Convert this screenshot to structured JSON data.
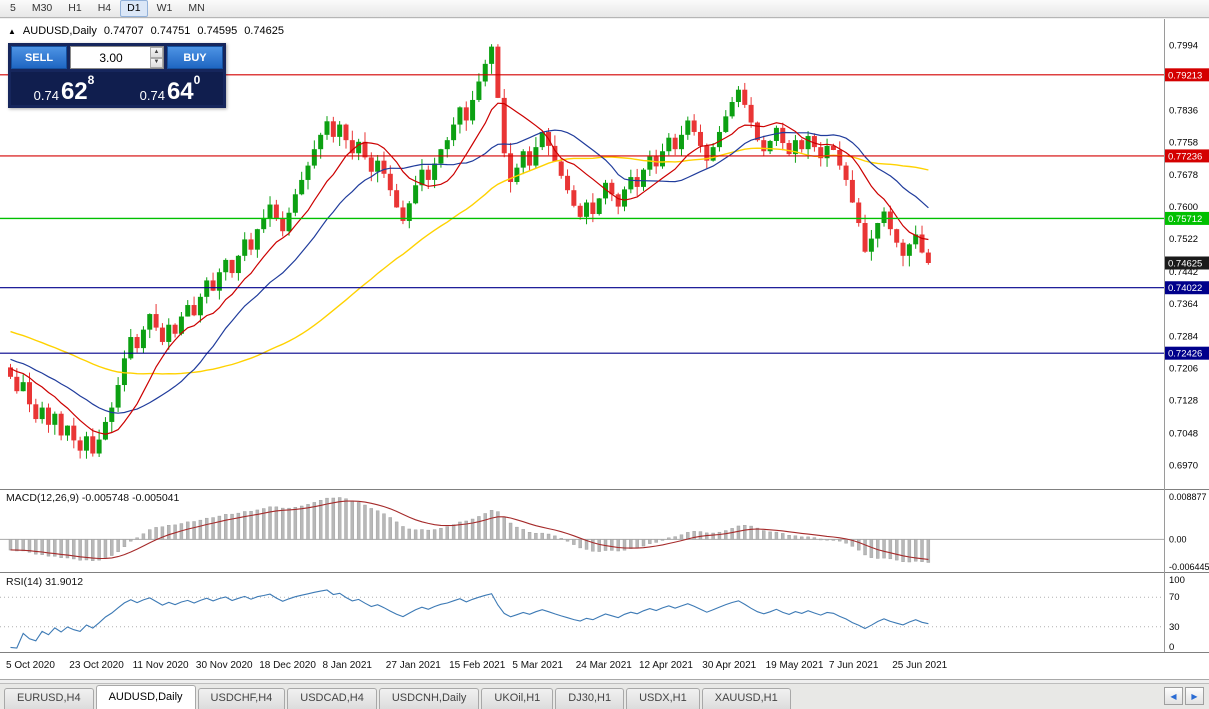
{
  "ui_colors": {
    "accent": "#2b6cd4",
    "panel_navy": "#16265c",
    "panel_navy_dark": "#101e4e",
    "button_blue": "#2f7fd8"
  },
  "toolbar": {
    "timeframes": [
      {
        "label": "5",
        "active": false
      },
      {
        "label": "M30",
        "active": false
      },
      {
        "label": "H1",
        "active": false
      },
      {
        "label": "H4",
        "active": false
      },
      {
        "label": "D1",
        "active": true
      },
      {
        "label": "W1",
        "active": false
      },
      {
        "label": "MN",
        "active": false
      }
    ]
  },
  "symbol_header": {
    "collapse_icon": "▲",
    "symbol": "AUDUSD,Daily",
    "open": "0.74707",
    "high": "0.74751",
    "low": "0.74595",
    "close": "0.74625"
  },
  "trade_panel": {
    "sell_label": "SELL",
    "buy_label": "BUY",
    "lot_value": "3.00",
    "spin_up_icon": "▲",
    "spin_down_icon": "▼",
    "sell_price": {
      "small": "0.74",
      "big": "62",
      "sup": "8"
    },
    "buy_price": {
      "small": "0.74",
      "big": "64",
      "sup": "0"
    }
  },
  "chart_data": {
    "type": "candlestick",
    "title": "AUDUSD,Daily",
    "timeframe": "Daily",
    "ylim": [
      0.693,
      0.804
    ],
    "first_open": 0.7208,
    "closes": [
      0.7185,
      0.715,
      0.7172,
      0.7118,
      0.7082,
      0.711,
      0.7068,
      0.7095,
      0.7042,
      0.7066,
      0.703,
      0.7005,
      0.704,
      0.6998,
      0.7032,
      0.7075,
      0.711,
      0.7165,
      0.723,
      0.7282,
      0.7255,
      0.73,
      0.7338,
      0.7305,
      0.727,
      0.7312,
      0.729,
      0.7332,
      0.736,
      0.7335,
      0.738,
      0.742,
      0.7395,
      0.744,
      0.747,
      0.7438,
      0.748,
      0.752,
      0.7495,
      0.7545,
      0.7572,
      0.7605,
      0.757,
      0.754,
      0.7585,
      0.763,
      0.7665,
      0.77,
      0.774,
      0.7775,
      0.7808,
      0.777,
      0.78,
      0.7762,
      0.773,
      0.7758,
      0.772,
      0.7685,
      0.7712,
      0.768,
      0.764,
      0.7598,
      0.7565,
      0.7608,
      0.7652,
      0.769,
      0.7665,
      0.7705,
      0.774,
      0.7762,
      0.78,
      0.7842,
      0.781,
      0.786,
      0.7905,
      0.7948,
      0.799,
      0.7865,
      0.773,
      0.766,
      0.7695,
      0.7735,
      0.77,
      0.7745,
      0.7782,
      0.7748,
      0.771,
      0.7675,
      0.764,
      0.7602,
      0.7575,
      0.761,
      0.7582,
      0.762,
      0.7658,
      0.763,
      0.76,
      0.7642,
      0.7672,
      0.7648,
      0.769,
      0.7722,
      0.7698,
      0.7735,
      0.7768,
      0.774,
      0.7775,
      0.781,
      0.7782,
      0.7748,
      0.7712,
      0.7745,
      0.7782,
      0.782,
      0.7855,
      0.7885,
      0.7848,
      0.7805,
      0.7762,
      0.7735,
      0.776,
      0.7792,
      0.7755,
      0.7728,
      0.7762,
      0.774,
      0.7772,
      0.7745,
      0.7718,
      0.7748,
      0.7738,
      0.77,
      0.7665,
      0.761,
      0.756,
      0.749,
      0.7522,
      0.756,
      0.7588,
      0.7545,
      0.7512,
      0.748,
      0.7508,
      0.7532,
      0.7488,
      0.74625
    ],
    "x_ticks": [
      {
        "label": "5 Oct 2020",
        "i": 0
      },
      {
        "label": "23 Oct 2020",
        "i": 10
      },
      {
        "label": "11 Nov 2020",
        "i": 20
      },
      {
        "label": "30 Nov 2020",
        "i": 30
      },
      {
        "label": "18 Dec 2020",
        "i": 40
      },
      {
        "label": "8 Jan 2021",
        "i": 50
      },
      {
        "label": "27 Jan 2021",
        "i": 60
      },
      {
        "label": "15 Feb 2021",
        "i": 70
      },
      {
        "label": "5 Mar 2021",
        "i": 80
      },
      {
        "label": "24 Mar 2021",
        "i": 90
      },
      {
        "label": "12 Apr 2021",
        "i": 100
      },
      {
        "label": "30 Apr 2021",
        "i": 110
      },
      {
        "label": "19 May 2021",
        "i": 120
      },
      {
        "label": "7 Jun 2021",
        "i": 130
      },
      {
        "label": "25 Jun 2021",
        "i": 140
      }
    ],
    "y_labels": [
      "0.7994",
      "0.7916",
      "0.7836",
      "0.7758",
      "0.7678",
      "0.7600",
      "0.7522",
      "0.7442",
      "0.7364",
      "0.7284",
      "0.7206",
      "0.7128",
      "0.7048",
      "0.6970"
    ],
    "levels": [
      {
        "price": 0.79213,
        "label": "0.79213",
        "color": "#d40000"
      },
      {
        "price": 0.77236,
        "label": "0.77236",
        "color": "#d40000"
      },
      {
        "price": 0.75712,
        "label": "0.75712",
        "color": "#00c000"
      },
      {
        "price": 0.74022,
        "label": "0.74022",
        "color": "#00008b"
      },
      {
        "price": 0.72426,
        "label": "0.72426",
        "color": "#00008b"
      }
    ],
    "current": {
      "price": 0.74625,
      "label": "0.74625",
      "color": "#1a1a1a"
    },
    "moving_averages": [
      {
        "type": "SMA",
        "period": 10,
        "color": "#cc0000"
      },
      {
        "type": "SMA",
        "period": 20,
        "color": "#203c9c"
      },
      {
        "type": "SMA",
        "period": 50,
        "color": "#ffd200"
      }
    ],
    "colors": {
      "up": "#0ca012",
      "down": "#e93535",
      "macd_hist": "#b8b8b8",
      "macd_signal": "#a52a2a",
      "rsi_line": "#3d7ab5"
    },
    "indicators": {
      "macd": {
        "label": "MACD(12,26,9) -0.005748 -0.005041",
        "fast": 12,
        "slow": 26,
        "signal": 9,
        "axis_labels": [
          "0.008877",
          "0.00",
          "-0.006445"
        ]
      },
      "rsi": {
        "label": "RSI(14) 31.9012",
        "period": 14,
        "axis_labels": [
          "100",
          "70",
          "30",
          "0"
        ],
        "guide_levels": [
          70,
          30
        ]
      }
    }
  },
  "tabs": [
    {
      "label": "EURUSD,H4",
      "active": false
    },
    {
      "label": "AUDUSD,Daily",
      "active": true
    },
    {
      "label": "USDCHF,H4",
      "active": false
    },
    {
      "label": "USDCAD,H4",
      "active": false
    },
    {
      "label": "USDCNH,Daily",
      "active": false
    },
    {
      "label": "UKOil,H1",
      "active": false
    },
    {
      "label": "DJ30,H1",
      "active": false
    },
    {
      "label": "USDX,H1",
      "active": false
    },
    {
      "label": "XAUUSD,H1",
      "active": false
    }
  ],
  "tab_scroll": {
    "left": "◀",
    "right": "▶"
  }
}
